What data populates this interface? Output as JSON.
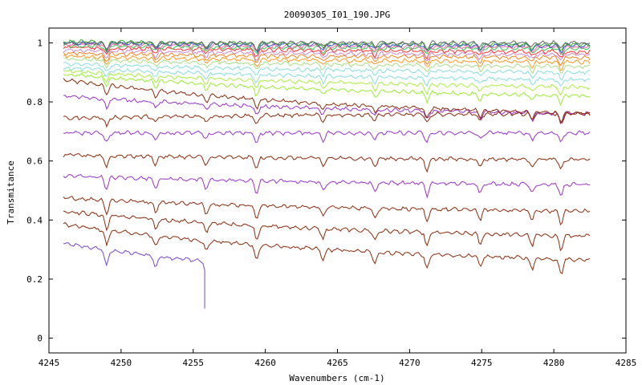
{
  "chart_data": {
    "type": "line",
    "title": "20090305_I01_190.JPG",
    "xlabel": "Wavenumbers (cm-1)",
    "ylabel": "Transmitance",
    "xlim": [
      4245,
      4285
    ],
    "ylim": [
      -0.05,
      1.05
    ],
    "xticks": [
      4245,
      4250,
      4255,
      4260,
      4265,
      4270,
      4275,
      4280,
      4285
    ],
    "yticks": [
      0,
      0.2,
      0.4,
      0.6,
      0.8,
      1
    ],
    "ytick_labels": [
      "0",
      "0.2",
      "0.4",
      "0.6",
      "0.8",
      "1"
    ],
    "grid": false,
    "legend": "none",
    "x_start": 4246.0,
    "x_end": 4282.5,
    "absorption_lines": [
      4249.0,
      4252.4,
      4255.9,
      4259.4,
      4264.0,
      4267.6,
      4271.2,
      4274.9,
      4278.5,
      4280.5
    ],
    "series": [
      {
        "color": "#7744cc",
        "start": 0.32,
        "end": 0.19,
        "x_end": 4255.8,
        "drop_to": 0.1
      },
      {
        "color": "#8b2a0a",
        "start": 0.385,
        "end": 0.265
      },
      {
        "color": "#8b2a0a",
        "start": 0.43,
        "end": 0.345
      },
      {
        "color": "#8b2a0a",
        "start": 0.475,
        "end": 0.43
      },
      {
        "color": "#9933cc",
        "start": 0.55,
        "end": 0.52
      },
      {
        "color": "#8b2a0a",
        "start": 0.62,
        "end": 0.605
      },
      {
        "color": "#9933cc",
        "start": 0.695,
        "end": 0.695
      },
      {
        "color": "#8b2a0a",
        "start": 0.745,
        "end": 0.76
      },
      {
        "color": "#9933cc",
        "start": 0.82,
        "end": 0.76
      },
      {
        "color": "#8b2a0a",
        "start": 0.875,
        "end": 0.76
      },
      {
        "color": "#99ee33",
        "start": 0.895,
        "end": 0.82
      },
      {
        "color": "#aaee44",
        "start": 0.905,
        "end": 0.85
      },
      {
        "color": "#88dddd",
        "start": 0.915,
        "end": 0.875
      },
      {
        "color": "#88dddd",
        "start": 0.93,
        "end": 0.9
      },
      {
        "color": "#aadd88",
        "start": 0.945,
        "end": 0.92
      },
      {
        "color": "#ff9922",
        "start": 0.955,
        "end": 0.935
      },
      {
        "color": "#ee8822",
        "start": 0.965,
        "end": 0.95
      },
      {
        "color": "#cc88cc",
        "start": 0.975,
        "end": 0.96
      },
      {
        "color": "#ff3333",
        "start": 0.985,
        "end": 0.97
      },
      {
        "color": "#33cc55",
        "start": 0.99,
        "end": 0.98
      },
      {
        "color": "#ff66aa",
        "start": 0.995,
        "end": 0.985
      },
      {
        "color": "#3355cc",
        "start": 1.0,
        "end": 0.99
      },
      {
        "color": "#33aa33",
        "start": 1.005,
        "end": 0.995
      },
      {
        "color": "#666666",
        "start": 1.0,
        "end": 1.0
      }
    ]
  }
}
